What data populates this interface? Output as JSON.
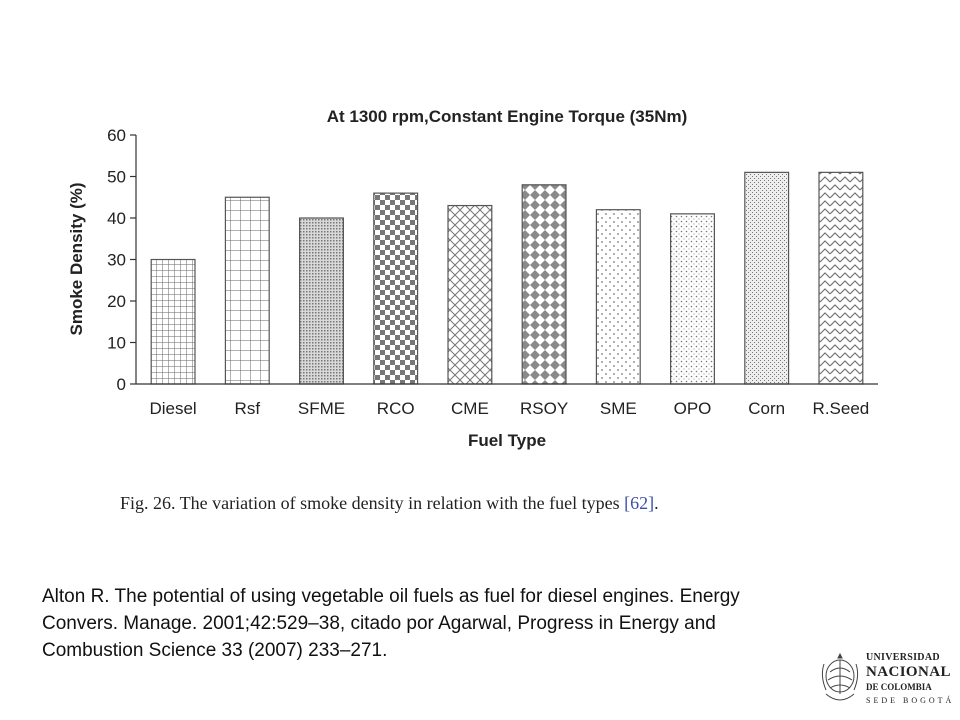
{
  "chart_data": {
    "type": "bar",
    "title": "At 1300 rpm,Constant Engine Torque (35Nm)",
    "xlabel": "Fuel Type",
    "ylabel": "Smoke Density (%)",
    "categories": [
      "Diesel",
      "Rsf",
      "SFME",
      "RCO",
      "CME",
      "RSOY",
      "SME",
      "OPO",
      "Corn",
      "R.Seed"
    ],
    "values": [
      30,
      45,
      40,
      46,
      43,
      48,
      42,
      41,
      51,
      51
    ],
    "patterns": [
      "grid-fine",
      "grid-coarse",
      "dense-dots",
      "checker",
      "diamond-lines",
      "diamond-filled",
      "sparse-dots",
      "fine-dots",
      "stipple",
      "zigzag"
    ],
    "ylim": [
      0,
      60
    ],
    "yticks": [
      0,
      10,
      20,
      30,
      40,
      50,
      60
    ],
    "grid": false,
    "legend": "none"
  },
  "caption": {
    "text": "Fig. 26.  The variation of smoke density in relation with the fuel types ",
    "ref": "[62]",
    "end": "."
  },
  "citation": "Alton R. The potential of using vegetable oil fuels as fuel for diesel engines. Energy Convers. Manage. 2001;42:529–38, citado por Agarwal, Progress in Energy and Combustion Science 33 (2007) 233–271.",
  "logo": {
    "line1": "UNIVERSIDAD",
    "line2": "NACIONAL",
    "line3": "DE COLOMBIA",
    "line4": "SEDE BOGOTÁ"
  },
  "colors": {
    "axis": "#333333",
    "bar_outline": "#555555",
    "pattern_ink": "#666666",
    "caption_ref": "#3b4fa8"
  }
}
